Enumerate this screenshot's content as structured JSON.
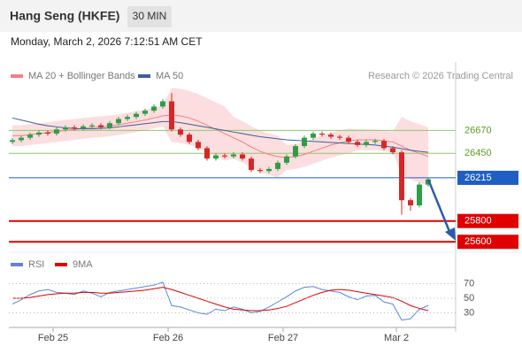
{
  "header": {
    "title": "Hang Seng (HKFE)",
    "timeframe": "30 MIN",
    "datetime": "Monday, March 2, 2026 7:12:51 AM CET",
    "credit": "Research © 2026 Trading Central"
  },
  "chart_data": [
    {
      "type": "candlestick",
      "legend": [
        "MA 20 + Bollinger Bands",
        "MA 50"
      ],
      "x": [
        0,
        1,
        2,
        3,
        4,
        5,
        6,
        7,
        8,
        9,
        10,
        11,
        12,
        13,
        14,
        15,
        16,
        17,
        18,
        19,
        20,
        21,
        22,
        23,
        24,
        25,
        26,
        27,
        28,
        29,
        30,
        31,
        32,
        33,
        34,
        35,
        36,
        37,
        38,
        39,
        40,
        41,
        42,
        43,
        44,
        45,
        46,
        47
      ],
      "open": [
        26560,
        26577,
        26600,
        26630,
        26650,
        26640,
        26680,
        26700,
        26690,
        26710,
        26720,
        26700,
        26740,
        26780,
        26800,
        26830,
        26860,
        26900,
        26950,
        26680,
        26630,
        26560,
        26500,
        26400,
        26430,
        26420,
        26440,
        26400,
        26290,
        26280,
        26300,
        26360,
        26420,
        26520,
        26600,
        26640,
        26630,
        26610,
        26600,
        26560,
        26530,
        26560,
        26570,
        26500,
        26460,
        26000,
        25950,
        26150
      ],
      "high": [
        26597,
        26620,
        26650,
        26670,
        26670,
        26700,
        26720,
        26720,
        26730,
        26740,
        26740,
        26760,
        26800,
        26820,
        26850,
        26880,
        26920,
        26970,
        27030,
        26700,
        26650,
        26580,
        26520,
        26450,
        26450,
        26460,
        26460,
        26420,
        26310,
        26320,
        26380,
        26440,
        26540,
        26620,
        26660,
        26660,
        26650,
        26630,
        26620,
        26580,
        26580,
        26590,
        26590,
        26520,
        26480,
        26020,
        26170,
        26220
      ],
      "low": [
        26540,
        26557,
        26580,
        26610,
        26620,
        26620,
        26660,
        26670,
        26670,
        26690,
        26680,
        26680,
        26720,
        26760,
        26780,
        26810,
        26840,
        26880,
        26660,
        26610,
        26540,
        26480,
        26380,
        26380,
        26400,
        26400,
        26380,
        26270,
        26260,
        26260,
        26280,
        26340,
        26400,
        26500,
        26580,
        26610,
        26590,
        26580,
        26540,
        26510,
        26510,
        26540,
        26480,
        26440,
        25860,
        25900,
        25930,
        26130
      ],
      "close": [
        26577,
        26600,
        26630,
        26650,
        26640,
        26680,
        26700,
        26690,
        26710,
        26720,
        26700,
        26740,
        26780,
        26800,
        26830,
        26860,
        26900,
        26950,
        26680,
        26630,
        26560,
        26500,
        26400,
        26430,
        26420,
        26440,
        26400,
        26290,
        26280,
        26300,
        26360,
        26420,
        26520,
        26600,
        26640,
        26630,
        26610,
        26600,
        26560,
        26530,
        26560,
        26570,
        26500,
        26460,
        26000,
        25950,
        26150,
        26200
      ],
      "up_color": "#2e9e44",
      "down_color": "#d62728",
      "bb_upper": [
        26720,
        26720,
        26730,
        26740,
        26750,
        26760,
        26770,
        26780,
        26790,
        26800,
        26805,
        26815,
        26825,
        26840,
        26855,
        26870,
        26890,
        26910,
        27080,
        27070,
        27050,
        27020,
        26980,
        26940,
        26900,
        26800,
        26760,
        26710,
        26670,
        26640,
        26620,
        26530,
        26540,
        26560,
        26590,
        26620,
        26650,
        26670,
        26690,
        26680,
        26680,
        26680,
        26670,
        26660,
        26800,
        26760,
        26730,
        26700
      ],
      "bb_lower": [
        26520,
        26520,
        26530,
        26540,
        26550,
        26560,
        26570,
        26580,
        26590,
        26600,
        26605,
        26615,
        26625,
        26640,
        26655,
        26670,
        26690,
        26710,
        26560,
        26550,
        26530,
        26500,
        26460,
        26420,
        26380,
        26400,
        26360,
        26310,
        26270,
        26240,
        26220,
        26290,
        26300,
        26320,
        26350,
        26380,
        26410,
        26430,
        26450,
        26480,
        26480,
        26480,
        26470,
        26460,
        26240,
        26200,
        26170,
        26140
      ],
      "bb_color": "#fbd3d5",
      "series": [
        {
          "name": "MA 20 + Bollinger Bands",
          "color": "#f08080",
          "values": [
            26620,
            26620,
            26630,
            26640,
            26650,
            26660,
            26670,
            26680,
            26690,
            26700,
            26705,
            26715,
            26725,
            26740,
            26755,
            26770,
            26790,
            26810,
            26820,
            26810,
            26790,
            26760,
            26720,
            26680,
            26640,
            26600,
            26560,
            26510,
            26470,
            26440,
            26420,
            26410,
            26420,
            26440,
            26470,
            26500,
            26530,
            26550,
            26570,
            26580,
            26580,
            26580,
            26570,
            26560,
            26520,
            26480,
            26450,
            26420
          ]
        },
        {
          "name": "MA 50",
          "color": "#3d5f96",
          "values": [
            26790,
            26770,
            26750,
            26730,
            26715,
            26705,
            26695,
            26690,
            26685,
            26685,
            26690,
            26695,
            26705,
            26715,
            26725,
            26735,
            26745,
            26755,
            26755,
            26745,
            26730,
            26715,
            26700,
            26685,
            26670,
            26655,
            26640,
            26625,
            26610,
            26600,
            26590,
            26580,
            26575,
            26570,
            26565,
            26560,
            26555,
            26550,
            26545,
            26540,
            26535,
            26530,
            26520,
            26510,
            26495,
            26480,
            26470,
            26460
          ]
        }
      ],
      "levels": [
        {
          "value": 26670,
          "color": "#8cc96a",
          "label_box": false
        },
        {
          "value": 26450,
          "color": "#8cc96a",
          "label_box": false
        },
        {
          "value": 26215,
          "color": "#1f5fc4",
          "label_box": true
        },
        {
          "value": 25800,
          "color": "#e00000",
          "label_box": true
        },
        {
          "value": 25600,
          "color": "#e00000",
          "label_box": true
        }
      ],
      "xlim": [
        -0.4,
        50.1
      ],
      "xticks": [
        {
          "value": 4.6,
          "label": "Feb 25"
        },
        {
          "value": 17.6,
          "label": "Feb 26"
        },
        {
          "value": 30.6,
          "label": "Feb 27"
        },
        {
          "value": 43.4,
          "label": "Mar 2"
        }
      ],
      "ylim": [
        25500,
        27320
      ]
    },
    {
      "type": "line",
      "series": [
        {
          "name": "RSI",
          "color": "#5b86d6",
          "values": [
            42,
            48,
            55,
            60,
            62,
            58,
            57,
            55,
            60,
            57,
            52,
            58,
            60,
            62,
            64,
            66,
            68,
            72,
            40,
            38,
            34,
            30,
            28,
            35,
            33,
            38,
            35,
            30,
            32,
            38,
            45,
            52,
            60,
            65,
            66,
            62,
            60,
            58,
            52,
            48,
            53,
            54,
            45,
            42,
            20,
            22,
            35,
            40
          ]
        },
        {
          "name": "9MA",
          "color": "#e00000",
          "values": [
            50,
            50,
            51,
            53,
            55,
            56,
            57,
            57,
            58,
            58,
            57,
            57,
            58,
            59,
            60,
            61,
            63,
            65,
            62,
            58,
            54,
            50,
            46,
            42,
            38,
            35,
            34,
            33,
            33,
            34,
            36,
            39,
            44,
            49,
            54,
            58,
            61,
            62,
            61,
            59,
            57,
            55,
            53,
            51,
            46,
            40,
            36,
            33
          ]
        }
      ],
      "ylim": [
        10,
        90
      ],
      "yticks": [
        30,
        50,
        70
      ]
    }
  ]
}
